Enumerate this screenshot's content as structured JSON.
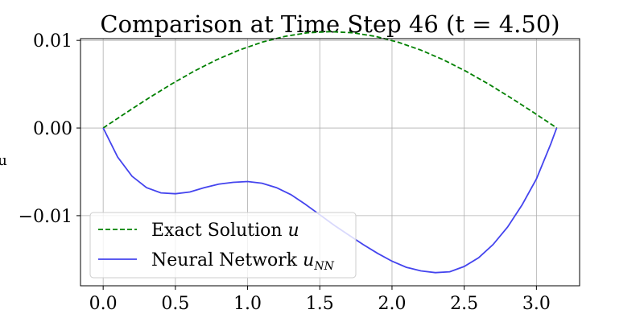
{
  "chart_data": {
    "type": "line",
    "title": "Comparison at Time Step 46 (t = 4.50)",
    "xlabel": "",
    "ylabel": "u",
    "xlim": [
      -0.157,
      3.299
    ],
    "ylim": [
      -0.018,
      0.0102
    ],
    "xticks": [
      0.0,
      0.5,
      1.0,
      1.5,
      2.0,
      2.5,
      3.0
    ],
    "xtick_labels": [
      "0.0",
      "0.5",
      "1.0",
      "1.5",
      "2.0",
      "2.5",
      "3.0"
    ],
    "yticks": [
      -0.01,
      0.0,
      0.01
    ],
    "ytick_labels": [
      "−0.01",
      "0.00",
      "0.01"
    ],
    "grid": true,
    "legend_position": "lower-left",
    "series": [
      {
        "name": "Exact Solution u",
        "legend_text": "Exact Solution ",
        "legend_math": "u",
        "color": "#008000",
        "style": "dashed",
        "x": [
          0.0,
          0.157,
          0.314,
          0.471,
          0.628,
          0.785,
          0.942,
          1.1,
          1.257,
          1.414,
          1.571,
          1.728,
          1.885,
          2.042,
          2.199,
          2.356,
          2.513,
          2.67,
          2.827,
          2.985,
          3.142
        ],
        "y": [
          0.0,
          0.00172,
          0.0034,
          0.005,
          0.00647,
          0.00778,
          0.0089,
          0.0098,
          0.01046,
          0.01087,
          0.011,
          0.01087,
          0.01046,
          0.0098,
          0.0089,
          0.00778,
          0.00647,
          0.005,
          0.0034,
          0.00172,
          0.0
        ]
      },
      {
        "name": "Neural Network u_NN",
        "legend_text": "Neural Network ",
        "legend_math": "u",
        "legend_sub": "NN",
        "color": "#4444ee",
        "style": "solid",
        "x": [
          0.0,
          0.1,
          0.2,
          0.3,
          0.4,
          0.5,
          0.6,
          0.7,
          0.8,
          0.9,
          1.0,
          1.1,
          1.2,
          1.3,
          1.4,
          1.5,
          1.6,
          1.7,
          1.8,
          1.9,
          2.0,
          2.1,
          2.2,
          2.3,
          2.4,
          2.5,
          2.6,
          2.7,
          2.8,
          2.9,
          3.0,
          3.1,
          3.14
        ],
        "y": [
          0.0,
          -0.0033,
          -0.0055,
          -0.0068,
          -0.0074,
          -0.0075,
          -0.0073,
          -0.0068,
          -0.0064,
          -0.0062,
          -0.0061,
          -0.0063,
          -0.0068,
          -0.0076,
          -0.0087,
          -0.0099,
          -0.0111,
          -0.0122,
          -0.0133,
          -0.0143,
          -0.0152,
          -0.0159,
          -0.0163,
          -0.0165,
          -0.0164,
          -0.0158,
          -0.0148,
          -0.0133,
          -0.0113,
          -0.0088,
          -0.0058,
          -0.0018,
          0.0
        ]
      }
    ]
  }
}
